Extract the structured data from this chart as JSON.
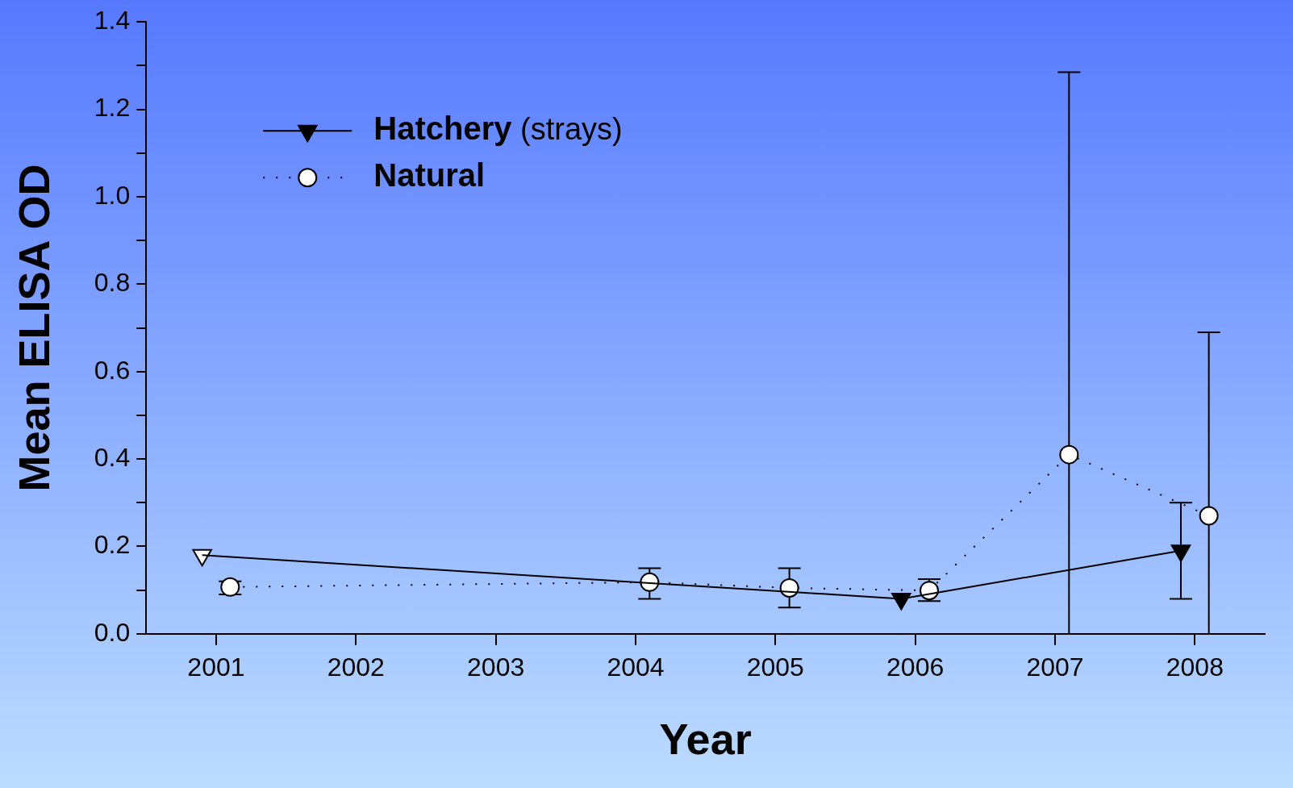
{
  "chart_data": {
    "type": "line",
    "xlabel": "Year",
    "ylabel": "Mean ELISA OD",
    "xlim": [
      2000.5,
      2008.5
    ],
    "xticks": [
      2001,
      2002,
      2003,
      2004,
      2005,
      2006,
      2007,
      2008
    ],
    "ylim": [
      0,
      1.4
    ],
    "yticks": [
      {
        "value": 0,
        "label": "0.0"
      },
      {
        "value": 0.1,
        "label": null
      },
      {
        "value": 0.2,
        "label": "0.2"
      },
      {
        "value": 0.3,
        "label": null
      },
      {
        "value": 0.4,
        "label": "0.4"
      },
      {
        "value": 0.5,
        "label": null
      },
      {
        "value": 0.6,
        "label": "0.6"
      },
      {
        "value": 0.7,
        "label": null
      },
      {
        "value": 0.8,
        "label": "0.8"
      },
      {
        "value": 0.9,
        "label": null
      },
      {
        "value": 1,
        "label": "1.0"
      },
      {
        "value": 1.1,
        "label": null
      },
      {
        "value": 1.2,
        "label": "1.2"
      },
      {
        "value": 1.3,
        "label": null
      },
      {
        "value": 1.4,
        "label": "1.4"
      }
    ],
    "grid": false,
    "legend": "top left",
    "series": [
      {
        "name": "Hatchery (strays)",
        "color": "#000000",
        "marker": "triangle",
        "line_style": "solid",
        "colors": [
          "#ffffff",
          "#000000",
          "#000000"
        ],
        "x": [
          2000.9,
          2005.9,
          2007.9
        ],
        "values": [
          0.18,
          0.08,
          0.19
        ],
        "errors": [
          null,
          null,
          [
            0.08,
            0.3
          ]
        ]
      },
      {
        "name": "Natural",
        "color": "#000000",
        "marker": "circle",
        "line_style": "dotted",
        "x": [
          2001.1,
          2004.1,
          2005.1,
          2006.1,
          2007.1,
          2008.1
        ],
        "values": [
          0.107,
          0.118,
          0.105,
          0.099,
          0.41,
          0.27
        ],
        "errors": [
          [
            0.09,
            0.12
          ],
          [
            0.08,
            0.15
          ],
          [
            0.06,
            0.15
          ],
          [
            0.075,
            0.125
          ],
          [
            0,
            1.285
          ],
          [
            0,
            0.69
          ]
        ]
      }
    ]
  }
}
